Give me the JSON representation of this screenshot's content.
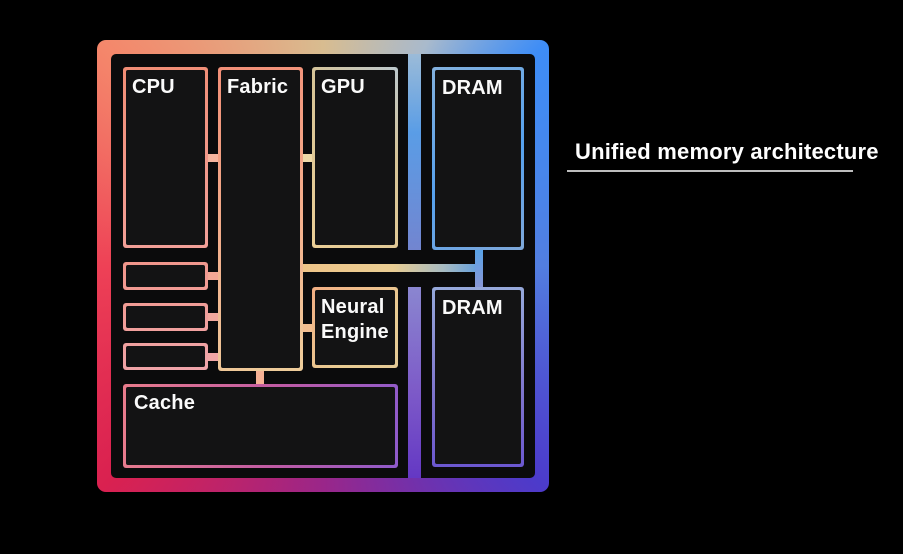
{
  "title": "Unified memory architecture",
  "diagram": {
    "blocks": {
      "cpu": "CPU",
      "fabric": "Fabric",
      "gpu": "GPU",
      "neural_engine": "Neural Engine",
      "cache": "Cache",
      "dram_top": "DRAM",
      "dram_bottom": "DRAM"
    }
  },
  "colors": {
    "background": "#000000",
    "text": "#FFFFFF",
    "underline": "#BDBDBD",
    "frame_top_left": "#F4876B",
    "frame_top_mid": "#D8BC90",
    "frame_top_right": "#3E8DF6",
    "frame_bottom_left": "#DA2150",
    "frame_bottom_mid": "#9A2689",
    "frame_bottom_right": "#4C3BCB"
  }
}
